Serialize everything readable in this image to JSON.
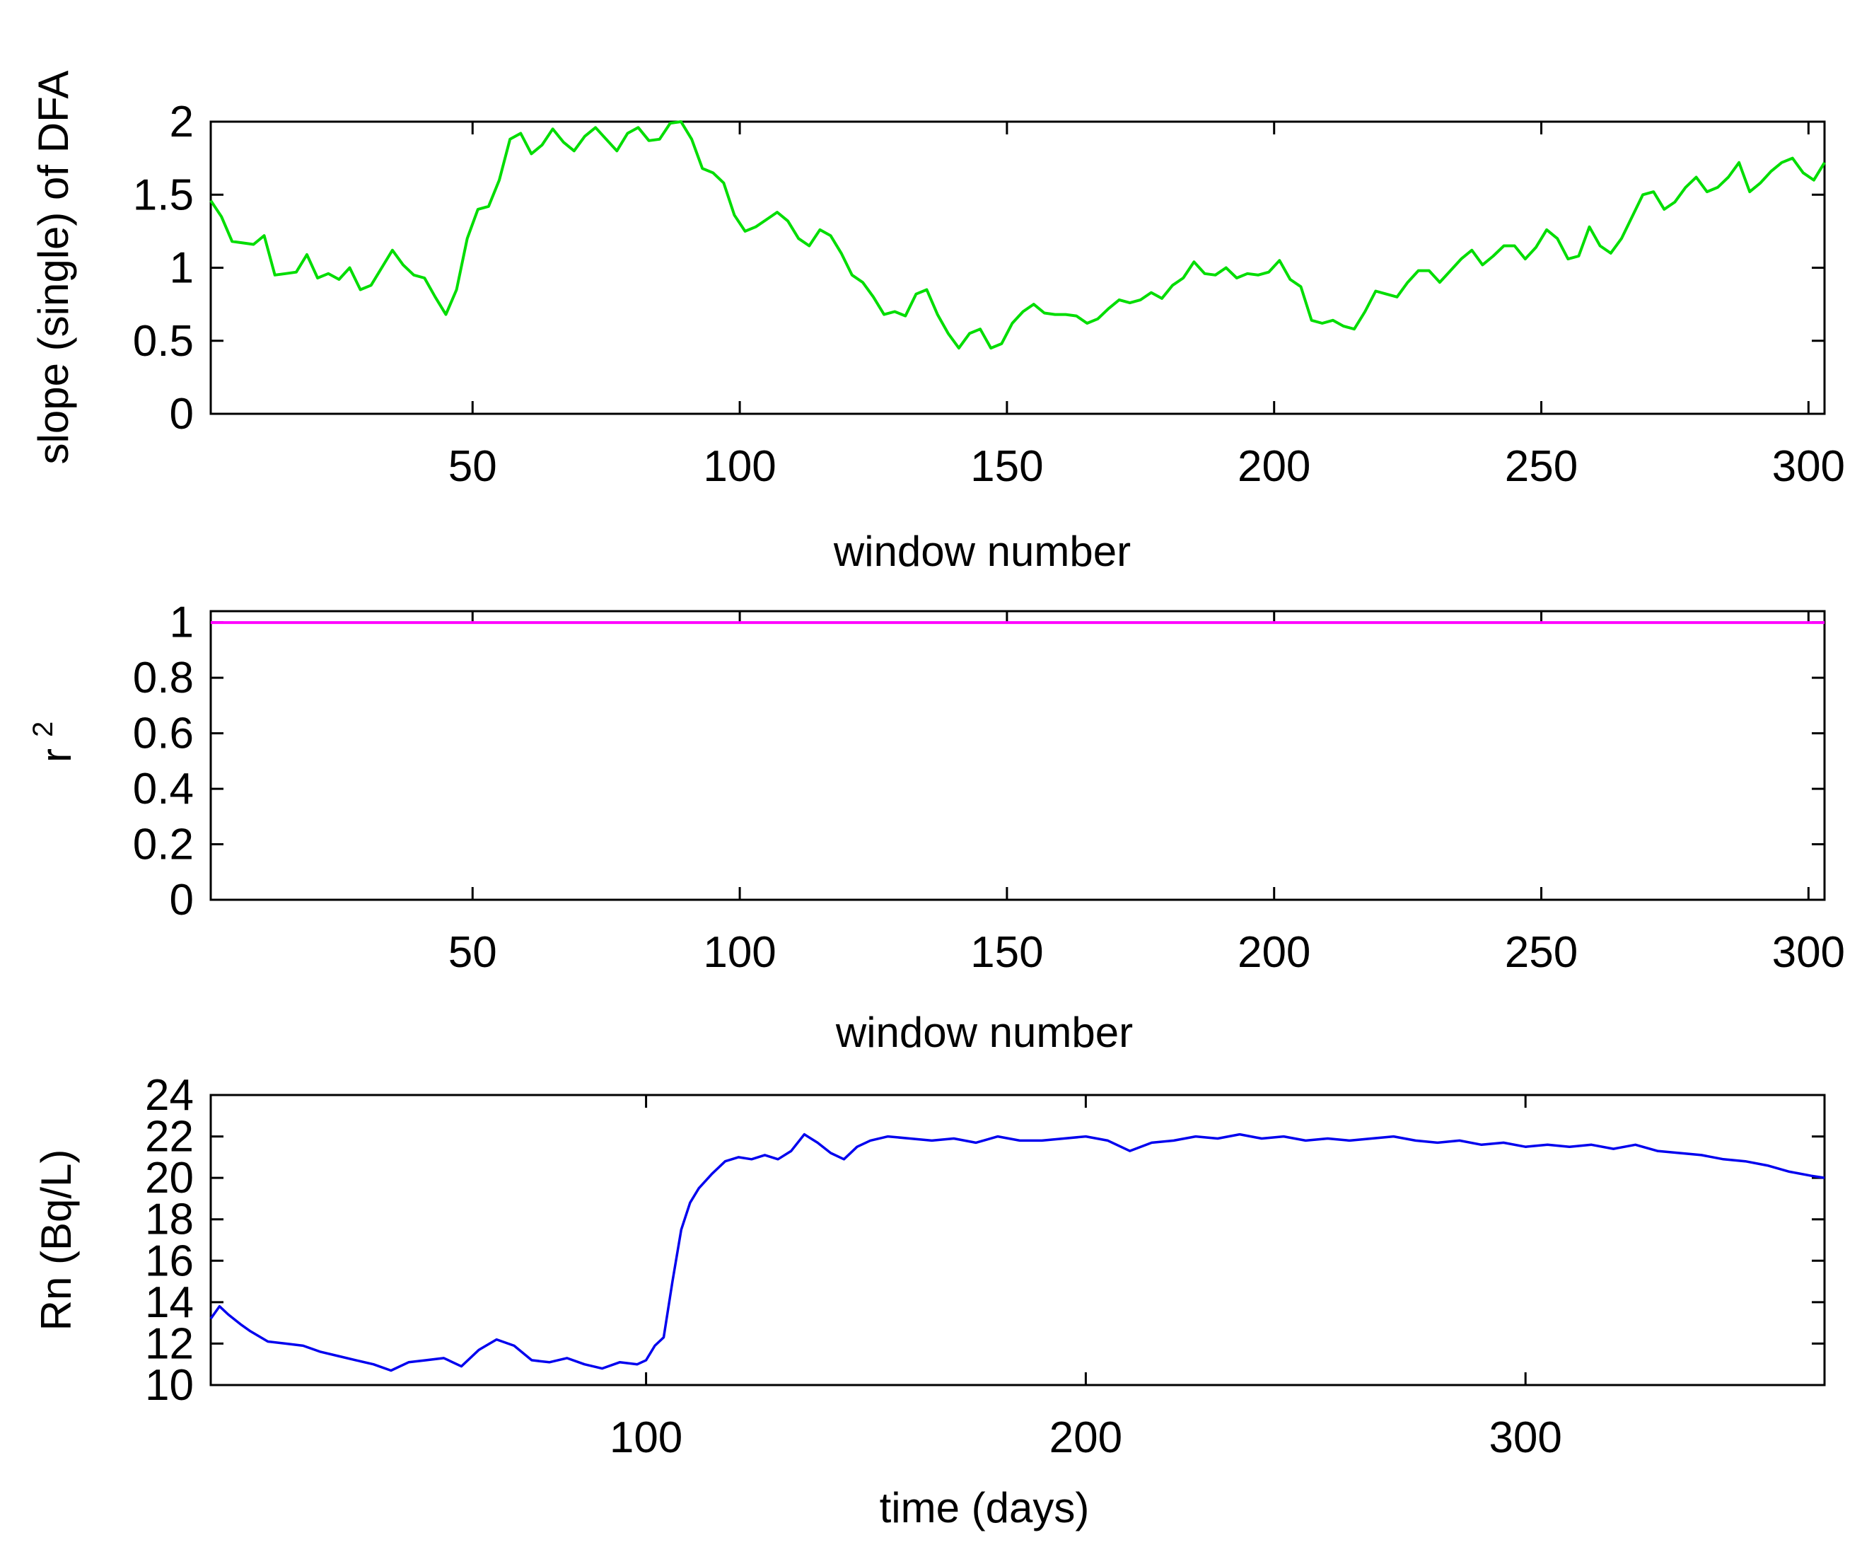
{
  "chart_data": [
    {
      "type": "line",
      "title": "",
      "xlabel": "window number",
      "ylabel": "slope (single) of DFA",
      "xlim": [
        1,
        303
      ],
      "ylim": [
        0,
        2
      ],
      "xticks": [
        50,
        100,
        150,
        200,
        250,
        300
      ],
      "yticks": [
        0,
        0.5,
        1,
        1.5,
        2
      ],
      "x_tick_labels": [
        "50",
        "100",
        "150",
        "200",
        "250",
        "300"
      ],
      "y_tick_labels": [
        "0",
        "0.5",
        "1",
        "1.5",
        "2"
      ],
      "grid": false,
      "color": "#00dd00",
      "x": [
        1,
        3,
        5,
        7,
        9,
        11,
        13,
        15,
        17,
        19,
        21,
        23,
        25,
        27,
        29,
        31,
        33,
        35,
        37,
        39,
        41,
        43,
        45,
        47,
        49,
        51,
        53,
        55,
        57,
        59,
        61,
        63,
        65,
        67,
        69,
        71,
        73,
        75,
        77,
        79,
        81,
        83,
        85,
        87,
        89,
        91,
        93,
        95,
        97,
        99,
        101,
        103,
        105,
        107,
        109,
        111,
        113,
        115,
        117,
        119,
        121,
        123,
        125,
        127,
        129,
        131,
        133,
        135,
        137,
        139,
        141,
        143,
        145,
        147,
        149,
        151,
        153,
        155,
        157,
        159,
        161,
        163,
        165,
        167,
        169,
        171,
        173,
        175,
        177,
        179,
        181,
        183,
        185,
        187,
        189,
        191,
        193,
        195,
        197,
        199,
        201,
        203,
        205,
        207,
        209,
        211,
        213,
        215,
        217,
        219,
        221,
        223,
        225,
        227,
        229,
        231,
        233,
        235,
        237,
        239,
        241,
        243,
        245,
        247,
        249,
        251,
        253,
        255,
        257,
        259,
        261,
        263,
        265,
        267,
        269,
        271,
        273,
        275,
        277,
        279,
        281,
        283,
        285,
        287,
        289,
        291,
        293,
        295,
        297,
        299,
        301,
        303
      ],
      "y": [
        1.46,
        1.35,
        1.18,
        1.17,
        1.16,
        1.22,
        0.95,
        0.96,
        0.97,
        1.09,
        0.93,
        0.96,
        0.92,
        1.0,
        0.85,
        0.88,
        1.0,
        1.12,
        1.02,
        0.95,
        0.93,
        0.8,
        0.68,
        0.85,
        1.2,
        1.4,
        1.42,
        1.6,
        1.88,
        1.92,
        1.78,
        1.84,
        1.95,
        1.86,
        1.8,
        1.9,
        1.96,
        1.88,
        1.8,
        1.92,
        1.96,
        1.87,
        1.88,
        1.99,
        2.0,
        1.88,
        1.68,
        1.65,
        1.58,
        1.36,
        1.25,
        1.28,
        1.33,
        1.38,
        1.32,
        1.2,
        1.15,
        1.26,
        1.22,
        1.1,
        0.95,
        0.9,
        0.8,
        0.68,
        0.7,
        0.67,
        0.82,
        0.85,
        0.68,
        0.55,
        0.45,
        0.55,
        0.58,
        0.45,
        0.48,
        0.62,
        0.7,
        0.75,
        0.69,
        0.68,
        0.68,
        0.67,
        0.62,
        0.65,
        0.72,
        0.78,
        0.76,
        0.78,
        0.83,
        0.79,
        0.88,
        0.93,
        1.04,
        0.96,
        0.95,
        1.0,
        0.93,
        0.96,
        0.95,
        0.97,
        1.05,
        0.92,
        0.87,
        0.64,
        0.62,
        0.64,
        0.6,
        0.58,
        0.7,
        0.84,
        0.82,
        0.8,
        0.9,
        0.98,
        0.98,
        0.9,
        0.98,
        1.06,
        1.12,
        1.02,
        1.08,
        1.15,
        1.15,
        1.06,
        1.14,
        1.26,
        1.2,
        1.06,
        1.08,
        1.28,
        1.15,
        1.1,
        1.2,
        1.35,
        1.5,
        1.52,
        1.4,
        1.45,
        1.55,
        1.62,
        1.52,
        1.55,
        1.62,
        1.72,
        1.52,
        1.58,
        1.66,
        1.72,
        1.75,
        1.65,
        1.6,
        1.72
      ]
    },
    {
      "type": "line",
      "title": "",
      "xlabel": "window number",
      "ylabel": "r",
      "ylabel_superscript": "2",
      "xlim": [
        1,
        303
      ],
      "ylim": [
        0,
        1.04
      ],
      "xticks": [
        50,
        100,
        150,
        200,
        250,
        300
      ],
      "yticks": [
        0,
        0.2,
        0.4,
        0.6,
        0.8,
        1
      ],
      "x_tick_labels": [
        "50",
        "100",
        "150",
        "200",
        "250",
        "300"
      ],
      "y_tick_labels": [
        "0",
        "0.2",
        "0.4",
        "0.6",
        "0.8",
        "1"
      ],
      "grid": false,
      "color": "#ff00ff",
      "x": [
        1,
        303
      ],
      "y": [
        0.999,
        0.999
      ]
    },
    {
      "type": "line",
      "title": "",
      "xlabel": "time (days)",
      "ylabel": "Rn (Bq/L)",
      "xlim": [
        1,
        368
      ],
      "ylim": [
        10,
        24
      ],
      "xticks": [
        100,
        200,
        300
      ],
      "yticks": [
        10,
        12,
        14,
        16,
        18,
        20,
        22,
        24
      ],
      "x_tick_labels": [
        "100",
        "200",
        "300"
      ],
      "y_tick_labels": [
        "10",
        "12",
        "14",
        "16",
        "18",
        "20",
        "22",
        "24"
      ],
      "grid": false,
      "color": "#0000ee",
      "x": [
        1,
        3,
        5,
        8,
        10,
        14,
        18,
        22,
        26,
        30,
        34,
        38,
        42,
        46,
        50,
        54,
        58,
        62,
        66,
        70,
        74,
        78,
        82,
        86,
        90,
        94,
        98,
        100,
        102,
        104,
        106,
        108,
        110,
        112,
        115,
        118,
        121,
        124,
        127,
        130,
        133,
        136,
        139,
        142,
        145,
        148,
        151,
        155,
        160,
        165,
        170,
        175,
        180,
        185,
        190,
        195,
        200,
        205,
        210,
        215,
        220,
        225,
        230,
        235,
        240,
        245,
        250,
        255,
        260,
        265,
        270,
        275,
        280,
        285,
        290,
        295,
        300,
        305,
        310,
        315,
        320,
        325,
        330,
        335,
        340,
        345,
        350,
        355,
        360,
        365,
        368
      ],
      "y": [
        13.2,
        13.8,
        13.4,
        12.9,
        12.6,
        12.1,
        12.0,
        11.9,
        11.6,
        11.4,
        11.2,
        11.0,
        10.7,
        11.1,
        11.2,
        11.3,
        10.9,
        11.7,
        12.2,
        11.9,
        11.2,
        11.1,
        11.3,
        11.0,
        10.8,
        11.1,
        11.0,
        11.2,
        11.9,
        12.3,
        15.0,
        17.5,
        18.8,
        19.5,
        20.2,
        20.8,
        21.0,
        20.9,
        21.1,
        20.9,
        21.3,
        22.1,
        21.7,
        21.2,
        20.9,
        21.5,
        21.8,
        22.0,
        21.9,
        21.8,
        21.9,
        21.7,
        22.0,
        21.8,
        21.8,
        21.9,
        22.0,
        21.8,
        21.3,
        21.7,
        21.8,
        22.0,
        21.9,
        22.1,
        21.9,
        22.0,
        21.8,
        21.9,
        21.8,
        21.9,
        22.0,
        21.8,
        21.7,
        21.8,
        21.6,
        21.7,
        21.5,
        21.6,
        21.5,
        21.6,
        21.4,
        21.6,
        21.3,
        21.2,
        21.1,
        20.9,
        20.8,
        20.6,
        20.3,
        20.1,
        20.0
      ]
    }
  ]
}
